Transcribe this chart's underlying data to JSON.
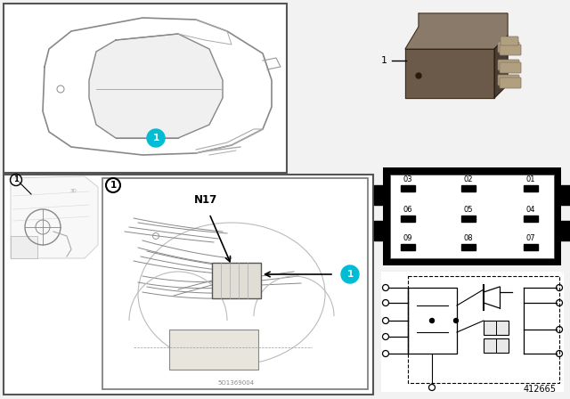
{
  "fig_number": "412665",
  "bg_color": "#f2f2f2",
  "cyan_color": "#00bcd4",
  "black": "#000000",
  "white": "#ffffff",
  "light_gray": "#cccccc",
  "mid_gray": "#999999",
  "relay_dark": "#4a3d32",
  "relay_mid": "#6b5a4a",
  "relay_light": "#8a7a6a",
  "relay_pin": "#b0a080"
}
